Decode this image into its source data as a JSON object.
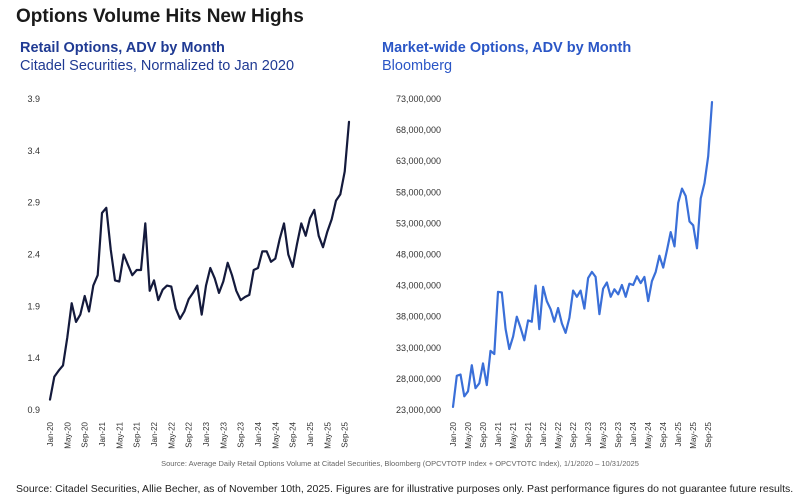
{
  "page_title": "Options Volume Hits New Highs",
  "panels": {
    "left": {
      "title": "Retail Options, ADV by Month",
      "subtitle": "Citadel Securities, Normalized to Jan 2020"
    },
    "right": {
      "title": "Market-wide Options, ADV by Month",
      "subtitle": "Bloomberg"
    }
  },
  "source_line": "Source:   Average Daily Retail Options Volume at Citadel Securities, Bloomberg (OPCVTOTP Index + OPCVTOTC Index), 1/1/2020 – 10/31/2025",
  "footer": "Source: Citadel Securities, Allie Becher, as of November 10th, 2025. Figures are for illustrative purposes only. Past performance figures do not guarantee future results.",
  "chart_data": [
    {
      "type": "line",
      "title": "Retail Options, ADV by Month",
      "subtitle": "Citadel Securities, Normalized to Jan 2020",
      "color": "#141a3c",
      "ylim": [
        0.9,
        3.9
      ],
      "yticks": [
        "0.9",
        "1.4",
        "1.9",
        "2.4",
        "2.9",
        "3.4",
        "3.9"
      ],
      "xticks": [
        "Jan-20",
        "May-20",
        "Sep-20",
        "Jan-21",
        "May-21",
        "Sep-21",
        "Jan-22",
        "May-22",
        "Sep-22",
        "Jan-23",
        "May-23",
        "Sep-23",
        "Jan-24",
        "May-24",
        "Sep-24",
        "Jan-25",
        "May-25",
        "Sep-25"
      ],
      "grid": false,
      "x": [
        "Jan-20",
        "Feb-20",
        "Mar-20",
        "Apr-20",
        "May-20",
        "Jun-20",
        "Jul-20",
        "Aug-20",
        "Sep-20",
        "Oct-20",
        "Nov-20",
        "Dec-20",
        "Jan-21",
        "Feb-21",
        "Mar-21",
        "Apr-21",
        "May-21",
        "Jun-21",
        "Jul-21",
        "Aug-21",
        "Sep-21",
        "Oct-21",
        "Nov-21",
        "Dec-21",
        "Jan-22",
        "Feb-22",
        "Mar-22",
        "Apr-22",
        "May-22",
        "Jun-22",
        "Jul-22",
        "Aug-22",
        "Sep-22",
        "Oct-22",
        "Nov-22",
        "Dec-22",
        "Jan-23",
        "Feb-23",
        "Mar-23",
        "Apr-23",
        "May-23",
        "Jun-23",
        "Jul-23",
        "Aug-23",
        "Sep-23",
        "Oct-23",
        "Nov-23",
        "Dec-23",
        "Jan-24",
        "Feb-24",
        "Mar-24",
        "Apr-24",
        "May-24",
        "Jun-24",
        "Jul-24",
        "Aug-24",
        "Sep-24",
        "Oct-24",
        "Nov-24",
        "Dec-24",
        "Jan-25",
        "Feb-25",
        "Mar-25",
        "Apr-25",
        "May-25",
        "Jun-25",
        "Jul-25",
        "Aug-25",
        "Sep-25",
        "Oct-25"
      ],
      "values": [
        1.0,
        1.22,
        1.28,
        1.33,
        1.6,
        1.93,
        1.75,
        1.82,
        2.0,
        1.85,
        2.1,
        2.2,
        2.8,
        2.85,
        2.45,
        2.15,
        2.14,
        2.4,
        2.3,
        2.2,
        2.25,
        2.25,
        2.7,
        2.05,
        2.15,
        1.96,
        2.06,
        2.1,
        2.09,
        1.88,
        1.78,
        1.85,
        1.97,
        2.03,
        2.1,
        1.82,
        2.1,
        2.27,
        2.17,
        2.03,
        2.14,
        2.32,
        2.2,
        2.05,
        1.96,
        1.99,
        2.01,
        2.25,
        2.27,
        2.43,
        2.43,
        2.33,
        2.36,
        2.55,
        2.7,
        2.4,
        2.28,
        2.5,
        2.7,
        2.58,
        2.75,
        2.83,
        2.58,
        2.47,
        2.62,
        2.74,
        2.92,
        2.98,
        3.2,
        3.68
      ]
    },
    {
      "type": "line",
      "title": "Market-wide Options, ADV by Month",
      "subtitle": "Bloomberg",
      "color": "#3a6fd8",
      "ylim": [
        23000000,
        73000000
      ],
      "yticks": [
        "23,000,000",
        "28,000,000",
        "33,000,000",
        "38,000,000",
        "43,000,000",
        "48,000,000",
        "53,000,000",
        "58,000,000",
        "63,000,000",
        "68,000,000",
        "73,000,000"
      ],
      "xticks": [
        "Jan-20",
        "May-20",
        "Sep-20",
        "Jan-21",
        "May-21",
        "Sep-21",
        "Jan-22",
        "May-22",
        "Sep-22",
        "Jan-23",
        "May-23",
        "Sep-23",
        "Jan-24",
        "May-24",
        "Sep-24",
        "Jan-25",
        "May-25",
        "Sep-25"
      ],
      "grid": false,
      "x": [
        "Jan-20",
        "Feb-20",
        "Mar-20",
        "Apr-20",
        "May-20",
        "Jun-20",
        "Jul-20",
        "Aug-20",
        "Sep-20",
        "Oct-20",
        "Nov-20",
        "Dec-20",
        "Jan-21",
        "Feb-21",
        "Mar-21",
        "Apr-21",
        "May-21",
        "Jun-21",
        "Jul-21",
        "Aug-21",
        "Sep-21",
        "Oct-21",
        "Nov-21",
        "Dec-21",
        "Jan-22",
        "Feb-22",
        "Mar-22",
        "Apr-22",
        "May-22",
        "Jun-22",
        "Jul-22",
        "Aug-22",
        "Sep-22",
        "Oct-22",
        "Nov-22",
        "Dec-22",
        "Jan-23",
        "Feb-23",
        "Mar-23",
        "Apr-23",
        "May-23",
        "Jun-23",
        "Jul-23",
        "Aug-23",
        "Sep-23",
        "Oct-23",
        "Nov-23",
        "Dec-23",
        "Jan-24",
        "Feb-24",
        "Mar-24",
        "Apr-24",
        "May-24",
        "Jun-24",
        "Jul-24",
        "Aug-24",
        "Sep-24",
        "Oct-24",
        "Nov-24",
        "Dec-24",
        "Jan-25",
        "Feb-25",
        "Mar-25",
        "Apr-25",
        "May-25",
        "Jun-25",
        "Jul-25",
        "Aug-25",
        "Sep-25",
        "Oct-25"
      ],
      "values": [
        23500000,
        28500000,
        28700000,
        25200000,
        26000000,
        30200000,
        26500000,
        27300000,
        30500000,
        27000000,
        32500000,
        32000000,
        42000000,
        41900000,
        36000000,
        32800000,
        34800000,
        38000000,
        36200000,
        34200000,
        37400000,
        37200000,
        43000000,
        36000000,
        42800000,
        40500000,
        39200000,
        37200000,
        39400000,
        36900000,
        35400000,
        37800000,
        42200000,
        41200000,
        42200000,
        39300000,
        44200000,
        45200000,
        44400000,
        38400000,
        42500000,
        43500000,
        41200000,
        42400000,
        41600000,
        43100000,
        41200000,
        43300000,
        43100000,
        44500000,
        43400000,
        44400000,
        40500000,
        43700000,
        45200000,
        47800000,
        45900000,
        48700000,
        51600000,
        49300000,
        56300000,
        58600000,
        57400000,
        53300000,
        52700000,
        49000000,
        57000000,
        59500000,
        63800000,
        72500000
      ]
    }
  ]
}
